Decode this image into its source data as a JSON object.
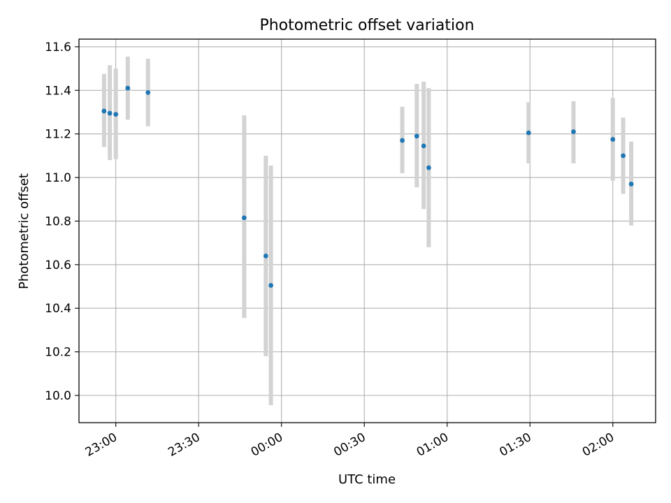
{
  "chart_data": {
    "type": "scatter",
    "title": "Photometric offset variation",
    "xlabel": "UTC time",
    "ylabel": "Photometric offset",
    "x_ticks": [
      "23:00",
      "23:30",
      "00:00",
      "00:30",
      "01:00",
      "01:30",
      "02:00"
    ],
    "y_ticks": [
      "10.0",
      "10.2",
      "10.4",
      "10.6",
      "10.8",
      "11.0",
      "11.2",
      "11.4",
      "11.6"
    ],
    "xlim": [
      "22:46:40",
      "02:15:30"
    ],
    "ylim": [
      9.875,
      11.635
    ],
    "grid": true,
    "marker_color": "#1f77b4",
    "errorbar_color": "#d3d3d3",
    "points": [
      {
        "time": "22:55:45",
        "y": 11.305,
        "err_low": 11.14,
        "err_high": 11.475
      },
      {
        "time": "22:57:50",
        "y": 11.295,
        "err_low": 11.08,
        "err_high": 11.515
      },
      {
        "time": "23:00:00",
        "y": 11.29,
        "err_low": 11.085,
        "err_high": 11.5
      },
      {
        "time": "23:04:20",
        "y": 11.41,
        "err_low": 11.265,
        "err_high": 11.555
      },
      {
        "time": "23:11:40",
        "y": 11.39,
        "err_low": 11.235,
        "err_high": 11.545
      },
      {
        "time": "23:46:30",
        "y": 10.815,
        "err_low": 10.355,
        "err_high": 11.285
      },
      {
        "time": "23:54:20",
        "y": 10.64,
        "err_low": 10.18,
        "err_high": 11.1
      },
      {
        "time": "23:56:10",
        "y": 10.505,
        "err_low": 9.955,
        "err_high": 11.055
      },
      {
        "time": "00:43:45",
        "y": 11.17,
        "err_low": 11.02,
        "err_high": 11.325
      },
      {
        "time": "00:49:00",
        "y": 11.19,
        "err_low": 10.955,
        "err_high": 11.43
      },
      {
        "time": "00:51:30",
        "y": 11.145,
        "err_low": 10.855,
        "err_high": 11.44
      },
      {
        "time": "00:53:20",
        "y": 11.045,
        "err_low": 10.68,
        "err_high": 11.41
      },
      {
        "time": "01:29:30",
        "y": 11.205,
        "err_low": 11.065,
        "err_high": 11.345
      },
      {
        "time": "01:45:45",
        "y": 11.21,
        "err_low": 11.065,
        "err_high": 11.35
      },
      {
        "time": "02:00:00",
        "y": 11.175,
        "err_low": 10.985,
        "err_high": 11.365
      },
      {
        "time": "02:03:45",
        "y": 11.1,
        "err_low": 10.925,
        "err_high": 11.275
      },
      {
        "time": "02:06:40",
        "y": 10.97,
        "err_low": 10.78,
        "err_high": 11.165
      }
    ]
  }
}
